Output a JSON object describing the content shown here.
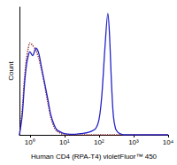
{
  "chart_data": {
    "type": "line",
    "x_label": "Human CD4 (RPA-T4) violetFluor™ 450",
    "y_label": "Count",
    "log": "x",
    "tick_labels": "x",
    "grid": false,
    "xlim": [
      0.5,
      10000
    ],
    "xticks": [
      {
        "value": 1,
        "label": "10⁰"
      },
      {
        "value": 10,
        "label": "10¹"
      },
      {
        "value": 100,
        "label": "10²"
      },
      {
        "value": 1000,
        "label": "10³"
      },
      {
        "value": 10000,
        "label": "10⁴"
      }
    ],
    "ylim": [
      0,
      100
    ],
    "x": [
      0.5,
      0.6,
      0.7,
      0.8,
      0.9,
      1,
      1.2,
      1.5,
      1.8,
      2.2,
      2.7,
      3.3,
      4,
      5,
      6,
      8,
      10,
      15,
      20,
      30,
      50,
      80,
      100,
      120,
      150,
      180,
      200,
      230,
      260,
      300,
      350,
      400,
      500,
      700,
      1000,
      10000
    ],
    "series": [
      {
        "color": "#8b1a1a",
        "line_style": "dotted",
        "values": [
          0,
          20,
          45,
          60,
          68,
          72,
          70,
          66,
          60,
          50,
          38,
          25,
          14,
          6,
          3,
          1,
          0,
          0,
          0,
          0,
          0,
          0,
          0,
          0,
          0,
          0,
          0,
          0,
          0,
          0,
          0,
          0,
          0,
          0,
          0,
          0
        ]
      },
      {
        "color": "#2323c8",
        "line_style": "solid",
        "values": [
          0,
          15,
          40,
          55,
          62,
          65,
          62,
          68,
          64,
          52,
          40,
          28,
          16,
          8,
          4,
          2,
          1,
          0.5,
          0.5,
          1,
          2,
          5,
          12,
          30,
          70,
          95,
          80,
          40,
          15,
          5,
          2,
          1,
          0,
          0,
          0,
          0
        ]
      }
    ]
  }
}
